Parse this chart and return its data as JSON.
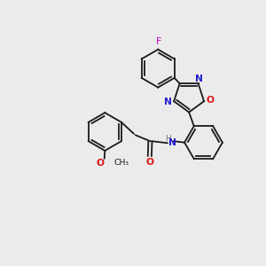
{
  "bg_color": "#ebebeb",
  "bond_color": "#1a1a1a",
  "N_color": "#2020cc",
  "O_color": "#dd1111",
  "F_color": "#cc00cc",
  "H_color": "#707070",
  "lw": 1.3,
  "fs": 7.2,
  "xlim": [
    0,
    10
  ],
  "ylim": [
    0,
    10
  ],
  "r_hex": 0.75,
  "r_pent": 0.58
}
